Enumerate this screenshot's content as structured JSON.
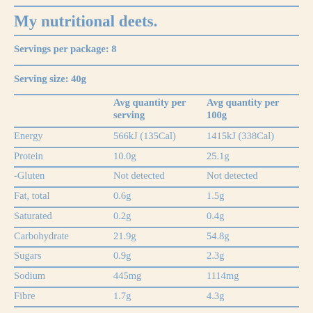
{
  "header": {
    "title": "My nutritional deets.",
    "servings": "Servings per package: 8",
    "serving_size": "Serving size: 40g"
  },
  "table": {
    "columns": [
      "Avg quantity per serving",
      "Avg quantity per 100g"
    ],
    "rows": [
      [
        "Energy",
        "566kJ (135Cal)",
        "1415kJ (338Cal)"
      ],
      [
        "Protein",
        "10.0g",
        "25.1g"
      ],
      [
        "-Gluten",
        "Not detected",
        "Not detected"
      ],
      [
        "Fat, total",
        "0.6g",
        "1.5g"
      ],
      [
        "Saturated",
        "0.2g",
        "0.4g"
      ],
      [
        "Carbohydrate",
        "21.9g",
        "54.8g"
      ],
      [
        "Sugars",
        "0.9g",
        "2.3g"
      ],
      [
        "Sodium",
        "445mg",
        "1114mg"
      ],
      [
        "Fibre",
        "1.7g",
        "4.3g"
      ]
    ]
  }
}
